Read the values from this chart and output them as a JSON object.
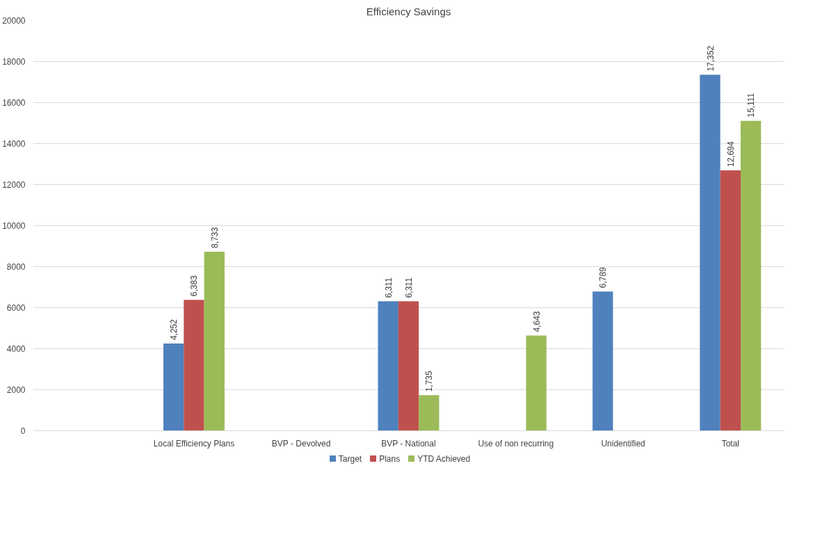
{
  "chart_data": {
    "type": "bar",
    "title": "Efficiency Savings",
    "categories": [
      null,
      "Local Efficiency Plans",
      "BVP - Devolved",
      "BVP - National",
      "Use of non recurring",
      "Unidentified",
      "Total"
    ],
    "series": [
      {
        "name": "Target",
        "color": "#4f81bd",
        "values": [
          null,
          4252,
          null,
          6311,
          null,
          6789,
          17352
        ],
        "value_labels": [
          null,
          "4,252",
          null,
          "6,311",
          null,
          "6,789",
          "17,352"
        ]
      },
      {
        "name": "Plans",
        "color": "#c0504d",
        "values": [
          null,
          6383,
          null,
          6311,
          null,
          null,
          12694
        ],
        "value_labels": [
          null,
          "6,383",
          null,
          "6,311",
          null,
          null,
          "12,694"
        ]
      },
      {
        "name": "YTD Achieved",
        "color": "#9bbb59",
        "values": [
          null,
          8733,
          null,
          1735,
          4643,
          null,
          15111
        ],
        "value_labels": [
          null,
          "8,733",
          null,
          "1,735",
          "4,643",
          null,
          "15,111"
        ]
      }
    ],
    "ylim": [
      0,
      20000
    ],
    "yticks": [
      0,
      2000,
      4000,
      6000,
      8000,
      10000,
      12000,
      14000,
      16000,
      18000,
      20000
    ],
    "grid": "y",
    "legend": "bottom"
  }
}
